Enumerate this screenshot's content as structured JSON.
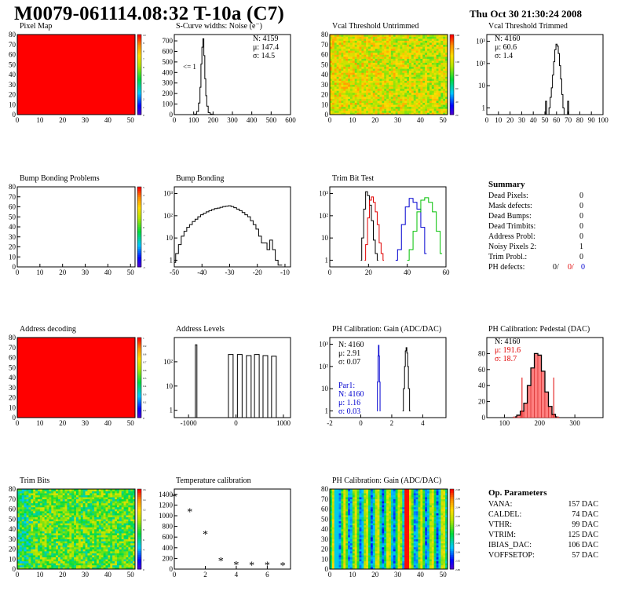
{
  "header": {
    "title": "M0079-061114.08:32 T-10a (C7)",
    "datestamp": "Thu Oct 30 21:30:24 2008"
  },
  "colors": {
    "pixel_map_fill": "#ff0000",
    "trim_red": "#e00000",
    "trim_blue": "#0000d0",
    "trim_green": "#00c000",
    "pedestal_fill": "#ff8080"
  },
  "panels": {
    "pixel_map": {
      "title": "Pixel Map",
      "z_ticks": [
        "10",
        "9",
        "8",
        "7",
        "6",
        "5",
        "4",
        "3",
        "2",
        "1",
        "0"
      ]
    },
    "scurve": {
      "title": "S-Curve widths: Noise (e⁻)",
      "stats": [
        "N: 4159",
        "μ: 147.4",
        "σ: 14.5"
      ],
      "underflow": "<= 1"
    },
    "vcal_untrimmed": {
      "title": "Vcal Threshold Untrimmed",
      "z_ticks": [
        "140",
        "120",
        "100",
        "80",
        "60",
        "40",
        "20"
      ]
    },
    "vcal_trimmed": {
      "title": "Vcal Threshold Trimmed",
      "stats": [
        "N: 4160",
        "μ: 60.6",
        "σ: 1.4"
      ]
    },
    "bump_problems": {
      "title": "Bump Bonding Problems",
      "z_ticks": [
        "5",
        "4",
        "3",
        "2",
        "1",
        "0",
        "-1",
        "-2",
        "-3",
        "-4",
        "-5"
      ]
    },
    "bump_bonding": {
      "title": "Bump Bonding"
    },
    "trim_bit_test": {
      "title": "Trim Bit Test"
    },
    "address_decoding": {
      "title": "Address decoding",
      "z_ticks": [
        "1",
        "0.9",
        "0.8",
        "0.7",
        "0.6",
        "0.5",
        "0.4",
        "0.3",
        "0.2",
        "0.1",
        "0"
      ]
    },
    "address_levels": {
      "title": "Address Levels"
    },
    "ph_gain": {
      "title": "PH Calibration: Gain (ADC/DAC)",
      "stats": [
        "N: 4160",
        "μ: 2.91",
        "σ: 0.07"
      ],
      "par1": [
        "Par1:",
        "N: 4160",
        "μ: 1.16",
        "σ: 0.03"
      ]
    },
    "ph_pedestal": {
      "title": "PH Calibration: Pedestal (DAC)",
      "stats": [
        "N: 4160",
        "μ: 191.6",
        "σ: 18.7"
      ]
    },
    "trim_bits": {
      "title": "Trim Bits",
      "z_ticks": [
        "16",
        "14",
        "12",
        "10",
        "8",
        "6",
        "4",
        "2",
        "0"
      ]
    },
    "temperature": {
      "title": "Temperature calibration"
    },
    "ph_gain_map": {
      "title": "PH Calibration: Gain (ADC/DAC)",
      "z_ticks": [
        "2.98",
        "2.96",
        "2.94",
        "2.92",
        "2.90",
        "2.88",
        "2.86",
        "2.84",
        "2.82",
        "2.80"
      ]
    }
  },
  "summary": {
    "title": "Summary",
    "rows": [
      {
        "label": "Dead Pixels:",
        "value": "0"
      },
      {
        "label": "Mask defects:",
        "value": "0"
      },
      {
        "label": "Dead Bumps:",
        "value": "0"
      },
      {
        "label": "Dead Trimbits:",
        "value": "0"
      },
      {
        "label": "Address Probl:",
        "value": "0"
      },
      {
        "label": "Noisy Pixels 2:",
        "value": "1"
      },
      {
        "label": "Trim Probl.:",
        "value": "0"
      }
    ],
    "ph_defects": {
      "label": "PH defects:",
      "v1": "0/",
      "v2": "0/",
      "v3": "0"
    }
  },
  "op_params": {
    "title": "Op. Parameters",
    "rows": [
      {
        "label": "VANA:",
        "value": "157 DAC"
      },
      {
        "label": "CALDEL:",
        "value": "74 DAC"
      },
      {
        "label": "VTHR:",
        "value": "99 DAC"
      },
      {
        "label": "VTRIM:",
        "value": "125 DAC"
      },
      {
        "label": "IBIAS_DAC:",
        "value": "106 DAC"
      },
      {
        "label": "VOFFSETOP:",
        "value": "57 DAC"
      }
    ]
  },
  "chart_data": [
    {
      "id": "pixel_map",
      "type": "heatmap",
      "title": "Pixel Map",
      "x_ticks": [
        "0",
        "10",
        "20",
        "30",
        "40",
        "50"
      ],
      "y_ticks": [
        "0",
        "10",
        "20",
        "30",
        "40",
        "50",
        "60",
        "70",
        "80"
      ],
      "xlim": [
        0,
        52
      ],
      "ylim": [
        0,
        80
      ],
      "zlim": [
        0,
        10
      ],
      "uniform_value": 10
    },
    {
      "id": "scurve",
      "type": "line",
      "title": "S-Curve widths: Noise (e⁻)",
      "x_ticks": [
        "0",
        "100",
        "200",
        "300",
        "400",
        "500",
        "600"
      ],
      "y_ticks": [
        "0",
        "100",
        "200",
        "300",
        "400",
        "500",
        "600",
        "700"
      ],
      "xlim": [
        0,
        600
      ],
      "ylim": [
        0,
        760
      ],
      "x": [
        100,
        110,
        120,
        130,
        135,
        140,
        145,
        150,
        155,
        160,
        165,
        170,
        180,
        190,
        200,
        210
      ],
      "y": [
        0,
        5,
        30,
        110,
        260,
        480,
        640,
        720,
        560,
        340,
        180,
        80,
        20,
        5,
        2,
        0
      ]
    },
    {
      "id": "vcal_untrimmed",
      "type": "heatmap",
      "title": "Vcal Threshold Untrimmed",
      "x_ticks": [
        "0",
        "10",
        "20",
        "30",
        "40",
        "50"
      ],
      "y_ticks": [
        "0",
        "10",
        "20",
        "30",
        "40",
        "50",
        "60",
        "70",
        "80"
      ],
      "xlim": [
        0,
        52
      ],
      "ylim": [
        0,
        80
      ],
      "zlim": [
        0,
        150
      ]
    },
    {
      "id": "vcal_trimmed",
      "type": "line",
      "title": "Vcal Threshold Trimmed",
      "log_y": true,
      "x_ticks": [
        "0",
        "10",
        "20",
        "30",
        "40",
        "50",
        "60",
        "70",
        "80",
        "90",
        "100"
      ],
      "y_ticks": [
        "1",
        "10",
        "10²",
        "10³"
      ],
      "xlim": [
        0,
        100
      ],
      "ylim": [
        0.5,
        2000
      ],
      "x": [
        50,
        51,
        52,
        53,
        54,
        55,
        56,
        57,
        58,
        59,
        60,
        61,
        62,
        63,
        64,
        65,
        66,
        67,
        68,
        69,
        70,
        71
      ],
      "y": [
        0,
        2,
        0,
        0,
        1,
        3,
        8,
        30,
        120,
        420,
        740,
        600,
        280,
        80,
        20,
        4,
        1,
        0,
        0,
        0,
        2,
        0
      ]
    },
    {
      "id": "bump_problems",
      "type": "heatmap",
      "title": "Bump Bonding Problems",
      "x_ticks": [
        "0",
        "10",
        "20",
        "30",
        "40",
        "50"
      ],
      "y_ticks": [
        "0",
        "10",
        "20",
        "30",
        "40",
        "50",
        "60",
        "70",
        "80"
      ],
      "xlim": [
        0,
        52
      ],
      "ylim": [
        0,
        80
      ],
      "zlim": [
        -5,
        5
      ],
      "uniform_value": null
    },
    {
      "id": "bump_bonding",
      "type": "line",
      "title": "Bump Bonding",
      "log_y": true,
      "x_ticks": [
        "-50",
        "-40",
        "-30",
        "-20",
        "-10"
      ],
      "y_ticks": [
        "1",
        "10",
        "10²",
        "10³"
      ],
      "xlim": [
        -50,
        -8
      ],
      "ylim": [
        0.5,
        2000
      ],
      "x": [
        -50,
        -49,
        -48,
        -47,
        -46,
        -45,
        -44,
        -43,
        -42,
        -41,
        -40,
        -39,
        -38,
        -37,
        -36,
        -35,
        -34,
        -33,
        -32,
        -31,
        -30,
        -29,
        -28,
        -27,
        -26,
        -25,
        -24,
        -23,
        -22,
        -21,
        -20,
        -19,
        -18,
        -17,
        -16,
        -15,
        -14,
        -13,
        -12,
        -11
      ],
      "y": [
        0.8,
        2,
        5,
        12,
        20,
        30,
        40,
        55,
        70,
        90,
        110,
        130,
        150,
        170,
        190,
        210,
        220,
        240,
        260,
        270,
        280,
        260,
        230,
        200,
        170,
        140,
        110,
        90,
        60,
        40,
        25,
        12,
        6,
        6,
        3,
        8,
        3,
        1,
        0.6,
        0.6
      ]
    },
    {
      "id": "trim_bit_test",
      "type": "line",
      "title": "Trim Bit Test",
      "log_y": true,
      "x_ticks": [
        "0",
        "20",
        "40",
        "60"
      ],
      "y_ticks": [
        "1",
        "10",
        "10²",
        "10³"
      ],
      "xlim": [
        0,
        60
      ],
      "ylim": [
        0.5,
        2000
      ],
      "series": [
        {
          "color": "black",
          "x": [
            16,
            17,
            18,
            19,
            20,
            21,
            22,
            23,
            24,
            25
          ],
          "y": [
            1,
            10,
            200,
            1200,
            800,
            300,
            60,
            8,
            2,
            1
          ]
        },
        {
          "color": "red",
          "x": [
            18,
            19,
            20,
            21,
            22,
            23,
            24,
            25,
            26,
            27,
            28
          ],
          "y": [
            1,
            5,
            80,
            500,
            700,
            400,
            150,
            40,
            6,
            2,
            1
          ]
        },
        {
          "color": "blue",
          "x": [
            34,
            36,
            38,
            40,
            42,
            44,
            46,
            48,
            50
          ],
          "y": [
            1,
            3,
            40,
            250,
            600,
            400,
            200,
            30,
            2
          ]
        },
        {
          "color": "green",
          "x": [
            40,
            42,
            44,
            46,
            48,
            50,
            52,
            54,
            56,
            58
          ],
          "y": [
            1,
            3,
            20,
            150,
            500,
            650,
            400,
            150,
            20,
            2
          ]
        }
      ]
    },
    {
      "id": "address_decoding",
      "type": "heatmap",
      "title": "Address decoding",
      "x_ticks": [
        "0",
        "10",
        "20",
        "30",
        "40",
        "50"
      ],
      "y_ticks": [
        "0",
        "10",
        "20",
        "30",
        "40",
        "50",
        "60",
        "70",
        "80"
      ],
      "xlim": [
        0,
        52
      ],
      "ylim": [
        0,
        80
      ],
      "zlim": [
        0,
        1
      ],
      "uniform_value": 1
    },
    {
      "id": "address_levels",
      "type": "bar",
      "title": "Address Levels",
      "log_y": true,
      "x_ticks": [
        "-1000",
        "0",
        "1000"
      ],
      "y_ticks": [
        "1",
        "10",
        "10²"
      ],
      "xlim": [
        -1300,
        1150
      ],
      "ylim": [
        0.5,
        1000
      ],
      "peaks_x": [
        -840,
        -110,
        80,
        270,
        440,
        620,
        800
      ],
      "peaks_y": [
        500,
        200,
        200,
        180,
        200,
        180,
        170
      ]
    },
    {
      "id": "ph_gain",
      "type": "line",
      "title": "PH Calibration: Gain (ADC/DAC)",
      "log_y": true,
      "x_ticks": [
        "-2",
        "0",
        "2",
        "4"
      ],
      "y_ticks": [
        "1",
        "10",
        "10²",
        "10³"
      ],
      "xlim": [
        -2,
        5.5
      ],
      "ylim": [
        0.5,
        2000
      ],
      "series": [
        {
          "color": "black",
          "x": [
            2.7,
            2.8,
            2.85,
            2.9,
            2.95,
            3.0,
            3.05,
            3.1,
            3.2
          ],
          "y": [
            1,
            10,
            100,
            500,
            700,
            400,
            100,
            10,
            1
          ]
        },
        {
          "color": "blue",
          "x": [
            1.05,
            1.1,
            1.13,
            1.16,
            1.19,
            1.22,
            1.27
          ],
          "y": [
            1,
            20,
            300,
            900,
            300,
            20,
            1
          ]
        }
      ]
    },
    {
      "id": "ph_pedestal",
      "type": "bar",
      "title": "PH Calibration: Pedestal (DAC)",
      "x_ticks": [
        "100",
        "200",
        "300"
      ],
      "y_ticks": [
        "0",
        "20",
        "40",
        "60",
        "80"
      ],
      "xlim": [
        50,
        380
      ],
      "ylim": [
        0,
        100
      ],
      "x": [
        130,
        140,
        150,
        160,
        170,
        180,
        190,
        200,
        210,
        220,
        230,
        240,
        250
      ],
      "y": [
        1,
        3,
        8,
        18,
        40,
        62,
        80,
        78,
        58,
        32,
        14,
        4,
        1
      ],
      "cut_lines_x": [
        150,
        240
      ]
    },
    {
      "id": "trim_bits",
      "type": "heatmap",
      "title": "Trim Bits",
      "x_ticks": [
        "0",
        "10",
        "20",
        "30",
        "40",
        "50"
      ],
      "y_ticks": [
        "0",
        "10",
        "20",
        "30",
        "40",
        "50",
        "60",
        "70",
        "80"
      ],
      "xlim": [
        0,
        52
      ],
      "ylim": [
        0,
        80
      ],
      "zlim": [
        0,
        16
      ]
    },
    {
      "id": "temperature",
      "type": "scatter",
      "title": "Temperature calibration",
      "x_ticks": [
        "0",
        "2",
        "4",
        "6"
      ],
      "y_ticks": [
        "0",
        "200",
        "400",
        "600",
        "800",
        "1000",
        "1200",
        "1400"
      ],
      "xlim": [
        0,
        7.5
      ],
      "ylim": [
        0,
        1500
      ],
      "x": [
        0,
        1,
        2,
        3,
        4,
        5,
        6,
        7
      ],
      "y": [
        1360,
        1080,
        660,
        160,
        90,
        80,
        80,
        70
      ]
    },
    {
      "id": "ph_gain_map",
      "type": "heatmap",
      "title": "PH Calibration: Gain (ADC/DAC)",
      "x_ticks": [
        "0",
        "10",
        "20",
        "30",
        "40",
        "50"
      ],
      "y_ticks": [
        "0",
        "10",
        "20",
        "30",
        "40",
        "50",
        "60",
        "70",
        "80"
      ],
      "xlim": [
        0,
        52
      ],
      "ylim": [
        0,
        80
      ],
      "zlim": [
        2.79,
        2.99
      ]
    }
  ]
}
